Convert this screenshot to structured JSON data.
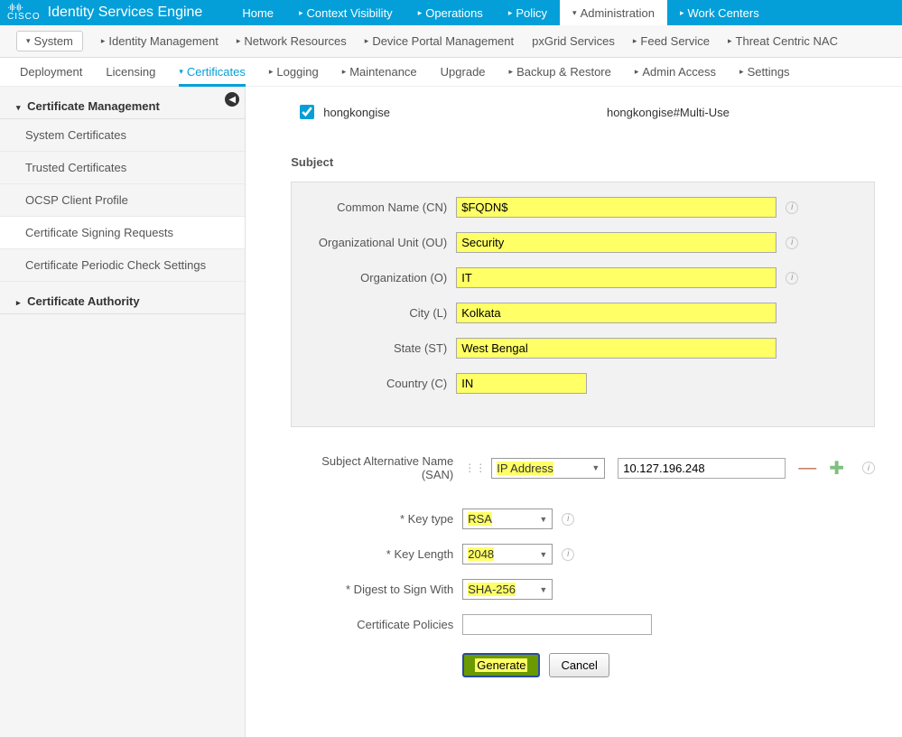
{
  "brand": {
    "logo_top": "·ı|ı·ı|ı·",
    "logo_bottom": "CISCO",
    "app_title": "Identity Services Engine"
  },
  "topnav": [
    "Home",
    "Context Visibility",
    "Operations",
    "Policy",
    "Administration",
    "Work Centers"
  ],
  "topnav_active_index": 4,
  "subnav": [
    "System",
    "Identity Management",
    "Network Resources",
    "Device Portal Management",
    "pxGrid Services",
    "Feed Service",
    "Threat Centric NAC"
  ],
  "subnav_active_index": 0,
  "tertnav": [
    "Deployment",
    "Licensing",
    "Certificates",
    "Logging",
    "Maintenance",
    "Upgrade",
    "Backup & Restore",
    "Admin Access",
    "Settings"
  ],
  "tertnav_active_index": 2,
  "sidebar": {
    "groups": [
      {
        "label": "Certificate Management",
        "expanded": true,
        "items": [
          "System Certificates",
          "Trusted Certificates",
          "OCSP Client Profile",
          "Certificate Signing Requests",
          "Certificate Periodic Check Settings"
        ],
        "selected_index": 3
      },
      {
        "label": "Certificate Authority",
        "expanded": false,
        "items": []
      }
    ]
  },
  "node": {
    "checked": true,
    "name": "hongkongise",
    "usage": "hongkongise#Multi-Use"
  },
  "subject": {
    "heading": "Subject",
    "fields": [
      {
        "label": "Common Name (CN)",
        "value": "$FQDN$",
        "info": true,
        "hl": true
      },
      {
        "label": "Organizational Unit (OU)",
        "value": "Security",
        "info": true,
        "hl": true
      },
      {
        "label": "Organization (O)",
        "value": "IT",
        "info": true,
        "hl": true
      },
      {
        "label": "City (L)",
        "value": "Kolkata",
        "info": false,
        "hl": true
      },
      {
        "label": "State (ST)",
        "value": "West Bengal",
        "info": false,
        "hl": true
      },
      {
        "label": "Country (C)",
        "value": "IN",
        "info": false,
        "hl": true,
        "short": true
      }
    ]
  },
  "san": {
    "label": "Subject Alternative Name (SAN)",
    "type": "IP Address",
    "value": "10.127.196.248"
  },
  "key_type": {
    "label": "* Key type",
    "value": "RSA"
  },
  "key_length": {
    "label": "* Key Length",
    "value": "2048"
  },
  "digest": {
    "label": "* Digest to Sign With",
    "value": "SHA-256"
  },
  "cert_policies": {
    "label": "Certificate Policies",
    "value": ""
  },
  "buttons": {
    "generate": "Generate",
    "cancel": "Cancel"
  }
}
